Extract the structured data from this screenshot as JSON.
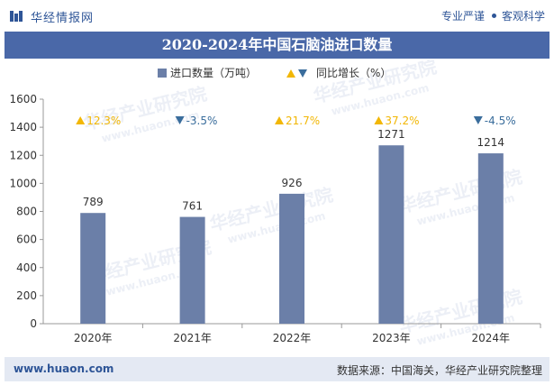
{
  "header": {
    "site_name": "华经情报网",
    "tagline_left": "专业严谨",
    "tagline_right": "客观科学"
  },
  "title": "2020-2024年中国石脑油进口数量",
  "footer": {
    "website": "www.huaon.com",
    "source": "数据来源：中国海关，华经产业研究院整理"
  },
  "watermark": {
    "text": "华经产业研究院",
    "url": "www.huaon.com"
  },
  "colors": {
    "bar": "#6b7fa8",
    "title_bg": "#4a68a8",
    "up": "#f2b705",
    "down": "#3a6d9c"
  },
  "chart_data": {
    "type": "bar",
    "categories": [
      "2020年",
      "2021年",
      "2022年",
      "2023年",
      "2024年"
    ],
    "series": [
      {
        "name": "进口数量（万吨）",
        "values": [
          789,
          761,
          926,
          1271,
          1214
        ]
      }
    ],
    "growth": {
      "name": "同比增长（%）",
      "labels": [
        "12.3%",
        "-3.5%",
        "21.7%",
        "37.2%",
        "-4.5%"
      ],
      "directions": [
        "up",
        "down",
        "up",
        "up",
        "down"
      ]
    },
    "legend": [
      "进口数量（万吨）",
      "同比增长（%）"
    ],
    "yticks": [
      0,
      200,
      400,
      600,
      800,
      1000,
      1200,
      1400,
      1600
    ],
    "ylim": [
      0,
      1600
    ],
    "legend_position": "top-center",
    "grid": false
  }
}
